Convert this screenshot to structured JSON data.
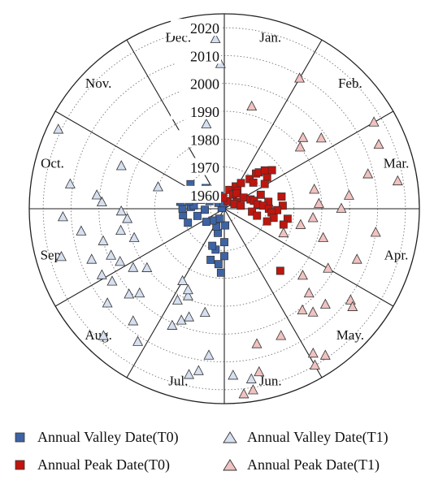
{
  "chart_data": {
    "type": "scatter",
    "polar": true,
    "angular_axis": {
      "labels": [
        "Jan.",
        "Feb.",
        "Mar.",
        "Apr.",
        "May.",
        "Jun.",
        "Jul.",
        "Aug.",
        "Sep.",
        "Oct.",
        "Nov.",
        "Dec."
      ],
      "direction": "clockwise",
      "start": "top"
    },
    "radial_axis": {
      "ticks": [
        "1960",
        "1970",
        "1980",
        "1990",
        "2000",
        "2010",
        "2020"
      ],
      "range": [
        1955,
        2025
      ]
    },
    "grid": true,
    "legend_position": "bottom",
    "colors": {
      "valley_t0": "#3d63a5",
      "valley_t1": "#d6e0f0",
      "peak_t0": "#c0150e",
      "peak_t1": "#f0c2c0"
    },
    "series": [
      {
        "name": "Annual Valley Date(T0)",
        "marker": "square",
        "points": [
          {
            "month": 5.9,
            "year": 1961
          },
          {
            "month": 6.0,
            "year": 1967
          },
          {
            "month": 6.0,
            "year": 1972
          },
          {
            "month": 6.1,
            "year": 1978
          },
          {
            "month": 6.2,
            "year": 1975
          },
          {
            "month": 6.4,
            "year": 1970
          },
          {
            "month": 6.5,
            "year": 1964
          },
          {
            "month": 6.5,
            "year": 1974
          },
          {
            "month": 6.6,
            "year": 1969
          },
          {
            "month": 6.8,
            "year": 1962
          },
          {
            "month": 6.9,
            "year": 1959
          },
          {
            "month": 7.5,
            "year": 1961
          },
          {
            "month": 7.8,
            "year": 1963
          },
          {
            "month": 8.3,
            "year": 1969
          },
          {
            "month": 8.5,
            "year": 1965
          },
          {
            "month": 8.7,
            "year": 1970
          },
          {
            "month": 8.9,
            "year": 1962
          },
          {
            "month": 9.0,
            "year": 1970
          },
          {
            "month": 9.1,
            "year": 1967
          },
          {
            "month": 9.2,
            "year": 1966
          },
          {
            "month": 9.3,
            "year": 1971
          },
          {
            "month": 9.4,
            "year": 1968
          },
          {
            "month": 9.5,
            "year": 1972
          },
          {
            "month": 9.5,
            "year": 1956
          },
          {
            "month": 9.7,
            "year": 1964
          },
          {
            "month": 9.9,
            "year": 1961
          },
          {
            "month": 10.2,
            "year": 1970
          },
          {
            "month": 10.5,
            "year": 1958
          },
          {
            "month": 10.6,
            "year": 1965
          },
          {
            "month": 10.8,
            "year": 1962
          },
          {
            "month": 11.3,
            "year": 1960
          },
          {
            "month": 11.6,
            "year": 1959
          },
          {
            "month": 11.8,
            "year": 1957
          }
        ]
      },
      {
        "name": "Annual Valley Date(T1)",
        "marker": "triangle",
        "points": [
          {
            "month": 5.7,
            "year": 2017
          },
          {
            "month": 5.9,
            "year": 2015
          },
          {
            "month": 6.2,
            "year": 2008
          },
          {
            "month": 6.3,
            "year": 2014
          },
          {
            "month": 6.35,
            "year": 1993
          },
          {
            "month": 6.4,
            "year": 2016
          },
          {
            "month": 6.6,
            "year": 1996
          },
          {
            "month": 6.7,
            "year": 1998
          },
          {
            "month": 6.75,
            "year": 1989
          },
          {
            "month": 6.8,
            "year": 2001
          },
          {
            "month": 6.8,
            "year": 1987
          },
          {
            "month": 6.9,
            "year": 1992
          },
          {
            "month": 7.0,
            "year": 1985
          },
          {
            "month": 7.1,
            "year": 2012
          },
          {
            "month": 7.3,
            "year": 2007
          },
          {
            "month": 7.45,
            "year": 2018
          },
          {
            "month": 7.5,
            "year": 1998
          },
          {
            "month": 7.6,
            "year": 2001
          },
          {
            "month": 7.7,
            "year": 2009
          },
          {
            "month": 7.75,
            "year": 1990
          },
          {
            "month": 7.9,
            "year": 1994
          },
          {
            "month": 7.9,
            "year": 2003
          },
          {
            "month": 8.05,
            "year": 2005
          },
          {
            "month": 8.1,
            "year": 1997
          },
          {
            "month": 8.25,
            "year": 1999
          },
          {
            "month": 8.3,
            "year": 2006
          },
          {
            "month": 8.4,
            "year": 1989
          },
          {
            "month": 8.45,
            "year": 2016
          },
          {
            "month": 8.5,
            "year": 2000
          },
          {
            "month": 8.6,
            "year": 1993
          },
          {
            "month": 8.7,
            "year": 2007
          },
          {
            "month": 8.8,
            "year": 1990
          },
          {
            "month": 8.9,
            "year": 2013
          },
          {
            "month": 8.95,
            "year": 1992
          },
          {
            "month": 9.1,
            "year": 1999
          },
          {
            "month": 9.2,
            "year": 2001
          },
          {
            "month": 9.3,
            "year": 2011
          },
          {
            "month": 9.6,
            "year": 1980
          },
          {
            "month": 9.75,
            "year": 1995
          },
          {
            "month": 9.85,
            "year": 2021
          },
          {
            "month": 11.6,
            "year": 1986
          },
          {
            "month": 11.9,
            "year": 2016
          },
          {
            "month": 11.95,
            "year": 2007
          }
        ]
      },
      {
        "name": "Annual Peak Date(T0)",
        "marker": "square",
        "points": [
          {
            "month": 0.5,
            "year": 1962
          },
          {
            "month": 0.8,
            "year": 1958
          },
          {
            "month": 0.9,
            "year": 1964
          },
          {
            "month": 1.05,
            "year": 1961
          },
          {
            "month": 1.1,
            "year": 1966
          },
          {
            "month": 1.2,
            "year": 1963
          },
          {
            "month": 1.3,
            "year": 1962
          },
          {
            "month": 1.35,
            "year": 1969
          },
          {
            "month": 1.4,
            "year": 1972
          },
          {
            "month": 1.45,
            "year": 1973
          },
          {
            "month": 1.55,
            "year": 1975
          },
          {
            "month": 1.6,
            "year": 1969
          },
          {
            "month": 1.7,
            "year": 1977
          },
          {
            "month": 1.8,
            "year": 1974
          },
          {
            "month": 1.95,
            "year": 1972
          },
          {
            "month": 2.0,
            "year": 1963
          },
          {
            "month": 2.05,
            "year": 1960
          },
          {
            "month": 2.15,
            "year": 1959
          },
          {
            "month": 2.3,
            "year": 1969
          },
          {
            "month": 2.35,
            "year": 1965
          },
          {
            "month": 2.5,
            "year": 1966
          },
          {
            "month": 2.6,
            "year": 1976
          },
          {
            "month": 2.65,
            "year": 1961
          },
          {
            "month": 2.7,
            "year": 1971
          },
          {
            "month": 2.75,
            "year": 1967
          },
          {
            "month": 2.85,
            "year": 1969
          },
          {
            "month": 2.9,
            "year": 1976
          },
          {
            "month": 3.0,
            "year": 1971
          },
          {
            "month": 3.05,
            "year": 1974
          },
          {
            "month": 3.15,
            "year": 1972
          },
          {
            "month": 3.2,
            "year": 1965
          },
          {
            "month": 3.3,
            "year": 1978
          },
          {
            "month": 3.35,
            "year": 1973
          },
          {
            "month": 3.4,
            "year": 1967
          },
          {
            "month": 3.5,
            "year": 1977
          },
          {
            "month": 3.55,
            "year": 1971
          },
          {
            "month": 4.6,
            "year": 1985
          },
          {
            "month": 11.8,
            "year": 1959
          }
        ]
      },
      {
        "name": "Annual Peak Date(T1)",
        "marker": "triangle",
        "points": [
          {
            "month": 0.5,
            "year": 1993
          },
          {
            "month": 1.0,
            "year": 2009
          },
          {
            "month": 1.6,
            "year": 1993
          },
          {
            "month": 1.7,
            "year": 1990
          },
          {
            "month": 1.8,
            "year": 1998
          },
          {
            "month": 2.0,
            "year": 2017
          },
          {
            "month": 2.25,
            "year": 2015
          },
          {
            "month": 2.55,
            "year": 2008
          },
          {
            "month": 2.6,
            "year": 1988
          },
          {
            "month": 2.7,
            "year": 2018
          },
          {
            "month": 2.8,
            "year": 2000
          },
          {
            "month": 2.9,
            "year": 1989
          },
          {
            "month": 3.0,
            "year": 1997
          },
          {
            "month": 3.2,
            "year": 1987
          },
          {
            "month": 3.3,
            "year": 2010
          },
          {
            "month": 3.4,
            "year": 1983
          },
          {
            "month": 3.55,
            "year": 1992
          },
          {
            "month": 3.7,
            "year": 2006
          },
          {
            "month": 3.75,
            "year": 1978
          },
          {
            "month": 4.0,
            "year": 1998
          },
          {
            "month": 4.2,
            "year": 2011
          },
          {
            "month": 4.25,
            "year": 2013
          },
          {
            "month": 4.35,
            "year": 1992
          },
          {
            "month": 4.45,
            "year": 2005
          },
          {
            "month": 4.5,
            "year": 1998
          },
          {
            "month": 4.65,
            "year": 2004
          },
          {
            "month": 4.75,
            "year": 2001
          },
          {
            "month": 4.85,
            "year": 2019
          },
          {
            "month": 4.95,
            "year": 2016
          },
          {
            "month": 5.0,
            "year": 2020
          },
          {
            "month": 5.2,
            "year": 2005
          },
          {
            "month": 5.55,
            "year": 2005
          },
          {
            "month": 5.6,
            "year": 2015
          },
          {
            "month": 5.7,
            "year": 2021
          },
          {
            "month": 5.8,
            "year": 2022
          }
        ]
      }
    ]
  },
  "legend": {
    "items": [
      {
        "label": "Annual Valley Date(T0)",
        "marker": "square",
        "fill": "#3d63a5"
      },
      {
        "label": "Annual Valley Date(T1)",
        "marker": "triangle",
        "fill": "#d6e0f0"
      },
      {
        "label": "Annual Peak Date(T0)",
        "marker": "square",
        "fill": "#c0150e"
      },
      {
        "label": "Annual Peak Date(T1)",
        "marker": "triangle",
        "fill": "#f0c2c0"
      }
    ]
  }
}
